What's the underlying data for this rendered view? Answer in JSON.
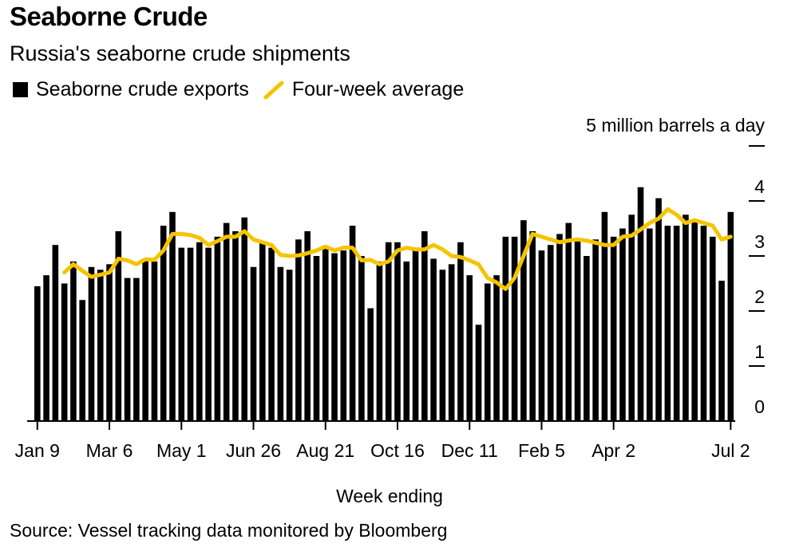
{
  "title": "Seaborne Crude",
  "subtitle": "Russia's seaborne crude shipments",
  "legend": {
    "bars": "Seaborne crude exports",
    "line": "Four-week average"
  },
  "source": "Source: Vessel tracking data monitored by Bloomberg",
  "colors": {
    "bars": "#000000",
    "line": "#f5c400",
    "axis": "#000000"
  },
  "chart_data": {
    "type": "bar",
    "ylabel": "5 million barrels a day",
    "xlabel": "Week ending",
    "ylim": [
      0,
      5
    ],
    "y_ticks": [
      {
        "value": 0,
        "label": "0"
      },
      {
        "value": 1,
        "label": "1"
      },
      {
        "value": 2,
        "label": "2"
      },
      {
        "value": 3,
        "label": "3"
      },
      {
        "value": 4,
        "label": "4"
      },
      {
        "value": 5,
        "label": ""
      }
    ],
    "x_ticks": [
      {
        "index": 0,
        "label": "Jan 9"
      },
      {
        "index": 8,
        "label": "Mar 6"
      },
      {
        "index": 16,
        "label": "May 1"
      },
      {
        "index": 24,
        "label": "Jun 26"
      },
      {
        "index": 32,
        "label": "Aug 21"
      },
      {
        "index": 40,
        "label": "Oct 16"
      },
      {
        "index": 48,
        "label": "Dec 11"
      },
      {
        "index": 56,
        "label": "Feb 5"
      },
      {
        "index": 64,
        "label": "Apr 2"
      },
      {
        "index": 77,
        "label": "Jul 2"
      }
    ],
    "series": [
      {
        "name": "Seaborne crude exports",
        "type": "bar",
        "values": [
          2.45,
          2.65,
          3.2,
          2.5,
          2.9,
          2.2,
          2.8,
          2.75,
          2.85,
          3.45,
          2.6,
          2.6,
          2.95,
          2.9,
          3.55,
          3.8,
          3.15,
          3.15,
          3.25,
          3.15,
          3.35,
          3.6,
          3.45,
          3.7,
          2.8,
          3.25,
          3.15,
          2.8,
          2.75,
          3.3,
          3.45,
          3.0,
          3.15,
          3.05,
          3.1,
          3.55,
          3.0,
          2.05,
          2.9,
          3.25,
          3.25,
          2.9,
          3.1,
          3.45,
          2.95,
          2.75,
          2.85,
          3.25,
          2.65,
          1.75,
          2.5,
          2.65,
          3.35,
          3.35,
          3.65,
          3.45,
          3.1,
          3.2,
          3.4,
          3.6,
          3.3,
          3.0,
          3.3,
          3.8,
          3.35,
          3.5,
          3.75,
          4.25,
          3.5,
          4.05,
          3.55,
          3.55,
          3.75,
          3.65,
          3.55,
          3.35,
          2.55,
          3.8
        ]
      },
      {
        "name": "Four-week average",
        "type": "line",
        "start_index": 3,
        "end_index": 77,
        "values": [
          2.7,
          2.85,
          2.73,
          2.62,
          2.66,
          2.7,
          2.95,
          2.92,
          2.85,
          2.94,
          2.93,
          3.1,
          3.4,
          3.4,
          3.38,
          3.33,
          3.2,
          3.27,
          3.35,
          3.35,
          3.45,
          3.3,
          3.25,
          3.2,
          3.02,
          3.0,
          3.01,
          3.05,
          3.1,
          3.17,
          3.1,
          3.15,
          3.15,
          2.92,
          2.93,
          2.85,
          2.9,
          3.1,
          3.15,
          3.12,
          3.12,
          3.2,
          3.12,
          3.0,
          2.98,
          2.92,
          2.85,
          2.6,
          2.52,
          2.4,
          2.6,
          3.0,
          3.4,
          3.35,
          3.3,
          3.25,
          3.28,
          3.3,
          3.28,
          3.24,
          3.2,
          3.2,
          3.35,
          3.37,
          3.48,
          3.6,
          3.68,
          3.85,
          3.75,
          3.6,
          3.65,
          3.6,
          3.55,
          3.3,
          3.35
        ]
      }
    ]
  }
}
